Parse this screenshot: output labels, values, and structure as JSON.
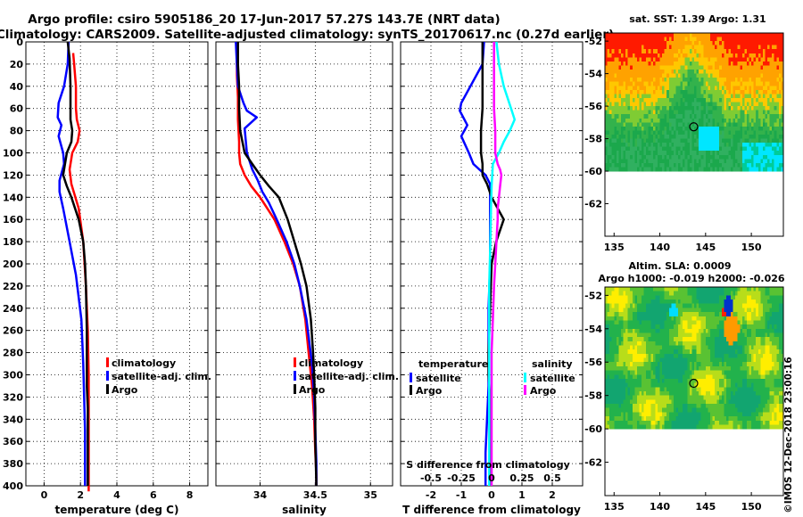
{
  "figure": {
    "title_line1": "Argo profile: csiro 5905186_20 17-Jun-2017 57.27S 143.7E (NRT data)",
    "title_line2": "Climatology: CARS2009. Satellite-adjusted climatology: synTS_20170617.nc (0.27d earlier)",
    "credit": "©IMOS 12-Dec-2018 23:00:16"
  },
  "colors": {
    "climatology": "#ff0000",
    "satellite": "#0000ff",
    "argo": "#000000",
    "sal_satellite": "#00ffff",
    "sal_argo": "#ff00ff"
  },
  "chart_data": [
    {
      "id": "temperature",
      "type": "line",
      "xlabel": "temperature (deg C)",
      "ylabel": "",
      "xlim": [
        -1,
        9
      ],
      "ylim": [
        400,
        0
      ],
      "xticks": [
        0,
        2,
        4,
        6,
        8
      ],
      "xtick_labels": [
        "0",
        "2",
        "4",
        "6",
        "8"
      ],
      "yticks": [
        0,
        20,
        40,
        60,
        80,
        100,
        120,
        140,
        160,
        180,
        200,
        220,
        240,
        260,
        280,
        300,
        320,
        340,
        360,
        380,
        400
      ],
      "ytick_labels": [
        "0",
        "20",
        "40",
        "60",
        "80",
        "100",
        "120",
        "140",
        "160",
        "180",
        "200",
        "220",
        "240",
        "260",
        "280",
        "300",
        "320",
        "340",
        "360",
        "380",
        "400"
      ],
      "grid": true,
      "legend": [
        "climatology",
        "satellite-adj. clim.",
        "Argo"
      ],
      "series": [
        {
          "name": "climatology",
          "color": "#ff0000",
          "x": [
            1.6,
            1.65,
            1.75,
            1.75,
            1.8,
            1.95,
            1.85,
            1.55,
            1.4,
            1.5,
            1.9,
            2.15,
            2.3,
            2.4,
            2.45,
            2.45,
            2.45,
            2.45,
            2.45,
            2.45,
            2.45,
            2.45
          ],
          "y": [
            10,
            20,
            40,
            60,
            70,
            80,
            90,
            100,
            115,
            128,
            150,
            180,
            220,
            260,
            300,
            320,
            340,
            360,
            380,
            390,
            400,
            405
          ]
        },
        {
          "name": "satellite-adj. clim.",
          "color": "#0000ff",
          "x": [
            1.35,
            1.3,
            1.1,
            0.8,
            0.75,
            0.95,
            0.8,
            1.05,
            1.1,
            0.85,
            0.85,
            1.05,
            1.4,
            1.75,
            2.05,
            2.15,
            2.2,
            2.25,
            2.25,
            2.25,
            2.25
          ],
          "y": [
            0,
            20,
            40,
            55,
            68,
            75,
            85,
            100,
            110,
            125,
            135,
            150,
            180,
            210,
            250,
            290,
            320,
            350,
            380,
            395,
            400
          ]
        },
        {
          "name": "Argo",
          "color": "#000000",
          "x": [
            1.3,
            1.4,
            1.45,
            1.45,
            1.45,
            1.55,
            1.5,
            1.25,
            1.05,
            1.25,
            1.5,
            1.9,
            2.15,
            2.25,
            2.3,
            2.35,
            2.35,
            2.35,
            2.35,
            2.4,
            2.4,
            2.4,
            2.4
          ],
          "y": [
            0,
            15,
            40,
            60,
            70,
            80,
            90,
            100,
            120,
            130,
            140,
            160,
            180,
            200,
            220,
            260,
            290,
            305,
            310,
            330,
            360,
            380,
            400
          ]
        }
      ]
    },
    {
      "id": "salinity",
      "type": "line",
      "xlabel": "salinity",
      "ylabel": "",
      "xlim": [
        33.6,
        35.2
      ],
      "ylim": [
        400,
        0
      ],
      "xticks": [
        34,
        34.5,
        35
      ],
      "xtick_labels": [
        "34",
        "34.5",
        "35"
      ],
      "grid": true,
      "legend": [
        "climatology",
        "satellite-adj. clim.",
        "Argo"
      ],
      "series": [
        {
          "name": "climatology",
          "color": "#ff0000",
          "x": [
            33.79,
            33.79,
            33.8,
            33.8,
            33.81,
            33.81,
            33.82,
            33.86,
            33.92,
            34.0,
            34.13,
            34.22,
            34.3,
            34.36,
            34.41,
            34.44,
            34.47,
            34.49,
            34.5,
            34.51,
            34.51
          ],
          "y": [
            10,
            30,
            50,
            70,
            90,
            100,
            110,
            120,
            130,
            140,
            160,
            180,
            200,
            220,
            250,
            280,
            310,
            340,
            370,
            390,
            400
          ]
        },
        {
          "name": "satellite-adj. clim.",
          "color": "#0000ff",
          "x": [
            33.78,
            33.79,
            33.8,
            33.85,
            33.88,
            33.97,
            33.86,
            33.88,
            33.93,
            33.98,
            34.02,
            34.08,
            34.15,
            34.24,
            34.31,
            34.36,
            34.42,
            34.47,
            34.49,
            34.5,
            34.51,
            34.51
          ],
          "y": [
            0,
            20,
            40,
            55,
            62,
            68,
            78,
            100,
            115,
            125,
            135,
            145,
            160,
            180,
            200,
            220,
            250,
            290,
            320,
            350,
            380,
            400
          ]
        },
        {
          "name": "Argo",
          "color": "#000000",
          "x": [
            33.8,
            33.8,
            33.81,
            33.81,
            33.82,
            33.86,
            33.93,
            34.0,
            34.08,
            34.17,
            34.25,
            34.31,
            34.37,
            34.42,
            34.46,
            34.48,
            34.49,
            34.5,
            34.5,
            34.51
          ],
          "y": [
            0,
            20,
            40,
            60,
            80,
            100,
            110,
            120,
            130,
            140,
            160,
            180,
            200,
            220,
            250,
            280,
            300,
            330,
            360,
            400
          ]
        }
      ]
    },
    {
      "id": "differences",
      "type": "line",
      "xlabel": "T difference from climatology",
      "xlabel_top": "S difference from climatology",
      "xlim": [
        -3,
        3
      ],
      "ylim": [
        400,
        0
      ],
      "xticks": [
        -2,
        -1,
        0,
        1,
        2
      ],
      "xtick_labels": [
        "-2",
        "-1",
        "0",
        "1",
        "2"
      ],
      "sal_xlim": [
        -0.75,
        0.75
      ],
      "sal_xticks": [
        -0.5,
        -0.25,
        0,
        0.25,
        0.5
      ],
      "sal_xtick_labels": [
        "-0.5",
        "-0.25",
        "0",
        "0.25",
        "0.5"
      ],
      "grid": true,
      "legend_temperature_title": "temperature",
      "legend_salinity_title": "salinity",
      "legend": [
        "satellite",
        "Argo"
      ],
      "series": [
        {
          "name": "T satellite",
          "color": "#0000ff",
          "axis": "T",
          "x": [
            -0.25,
            -0.3,
            -0.7,
            -1.0,
            -1.05,
            -0.8,
            -1.0,
            -0.75,
            -0.6,
            -0.2,
            -0.05,
            -0.05,
            -0.05,
            -0.05,
            -0.1,
            -0.1,
            -0.1,
            -0.15,
            -0.2,
            -0.2,
            -0.2
          ],
          "y": [
            0,
            20,
            40,
            55,
            62,
            75,
            85,
            100,
            110,
            120,
            128,
            140,
            160,
            200,
            240,
            280,
            310,
            340,
            370,
            390,
            400
          ]
        },
        {
          "name": "T Argo",
          "color": "#000000",
          "axis": "T",
          "x": [
            -0.3,
            -0.3,
            -0.3,
            -0.3,
            -0.35,
            -0.35,
            -0.3,
            -0.3,
            -0.15,
            0.0,
            0.2,
            0.4,
            0.15,
            0.0,
            -0.05,
            -0.1,
            -0.1,
            -0.05,
            -0.05,
            -0.05,
            -0.05
          ],
          "y": [
            0,
            20,
            40,
            60,
            80,
            100,
            110,
            120,
            128,
            140,
            150,
            160,
            180,
            200,
            240,
            280,
            300,
            320,
            350,
            380,
            400
          ]
        },
        {
          "name": "S satellite",
          "color": "#00ffff",
          "axis": "S",
          "x": [
            0.04,
            0.06,
            0.1,
            0.16,
            0.19,
            0.15,
            0.1,
            0.06,
            0.01,
            0.0,
            -0.005,
            -0.01,
            -0.02,
            -0.02,
            -0.02,
            -0.02,
            -0.02,
            -0.02,
            -0.02
          ],
          "y": [
            0,
            20,
            40,
            60,
            70,
            80,
            90,
            100,
            110,
            130,
            150,
            180,
            220,
            260,
            300,
            330,
            360,
            390,
            400
          ]
        },
        {
          "name": "S Argo",
          "color": "#ff00ff",
          "axis": "S",
          "x": [
            0.02,
            0.02,
            0.02,
            0.02,
            0.03,
            0.03,
            0.03,
            0.05,
            0.07,
            0.08,
            0.07,
            0.06,
            0.05,
            0.05,
            0.04,
            0.03,
            0.02,
            0.01,
            0.0,
            0.0,
            0.0,
            0.0
          ],
          "y": [
            0,
            20,
            40,
            60,
            80,
            90,
            100,
            110,
            115,
            120,
            130,
            140,
            150,
            160,
            180,
            200,
            220,
            250,
            280,
            320,
            360,
            400
          ]
        }
      ]
    },
    {
      "id": "sst_map",
      "type": "heatmap",
      "title": "sat. SST: 1.39 Argo: 1.31",
      "xlim": [
        134,
        153.5
      ],
      "ylim": [
        -64,
        -51.5
      ],
      "xticks": [
        135,
        140,
        145,
        150
      ],
      "xtick_labels": [
        "135",
        "140",
        "145",
        "150"
      ],
      "yticks": [
        -52,
        -54,
        -56,
        -58,
        -60,
        -62
      ],
      "ytick_labels": [
        "-52",
        "-54",
        "-56",
        "-58",
        "-60",
        "-62"
      ],
      "data_extent_lat": [
        -60,
        -51.5
      ],
      "argo_position": [
        143.7,
        -57.27
      ]
    },
    {
      "id": "sla_map",
      "type": "heatmap",
      "title": "Altim. SLA: 0.0009",
      "subtitle": "Argo h1000: -0.019 h2000: -0.026",
      "xlim": [
        134,
        153.5
      ],
      "ylim": [
        -64,
        -51.5
      ],
      "xticks": [
        135,
        140,
        145,
        150
      ],
      "xtick_labels": [
        "135",
        "140",
        "145",
        "150"
      ],
      "yticks": [
        -52,
        -54,
        -56,
        -58,
        -60,
        -62
      ],
      "ytick_labels": [
        "-52",
        "-54",
        "-56",
        "-58",
        "-60",
        "-62"
      ],
      "data_extent_lat": [
        -60,
        -51.5
      ],
      "argo_position": [
        143.7,
        -57.27
      ]
    }
  ]
}
